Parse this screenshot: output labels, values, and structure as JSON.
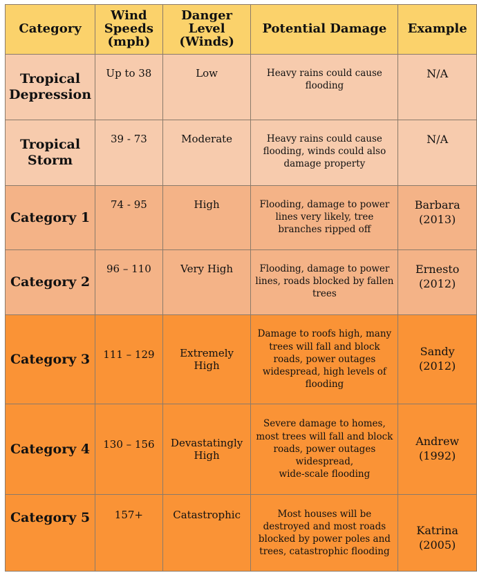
{
  "headers": {
    "category": "Category",
    "wind_speeds": "Wind\nSpeeds\n(mph)",
    "danger_level": "Danger\nLevel\n(Winds)",
    "potential_damage": "Potential Damage",
    "example": "Example"
  },
  "colors": {
    "header": "#fbd26b",
    "light": "#f7cbad",
    "medium": "#f4b387",
    "strong": "#fa9336"
  },
  "rows": [
    {
      "category": "Tropical\nDepression",
      "wind_speeds": "Up to 38",
      "danger_level": "Low",
      "potential_damage": "Heavy rains could cause\nflooding",
      "example": "N/A"
    },
    {
      "category": "Tropical\nStorm",
      "wind_speeds": "39 - 73",
      "danger_level": "Moderate",
      "potential_damage": "Heavy rains could cause\nflooding, winds could also\ndamage property",
      "example": "N/A"
    },
    {
      "category": "Category 1",
      "wind_speeds": "74 - 95",
      "danger_level": "High",
      "potential_damage": "Flooding, damage to power\nlines very likely, tree\nbranches ripped off",
      "example": "Barbara\n(2013)"
    },
    {
      "category": "Category 2",
      "wind_speeds": "96 – 110",
      "danger_level": "Very High",
      "potential_damage": "Flooding, damage to power\nlines, roads blocked by fallen\ntrees",
      "example": "Ernesto\n(2012)"
    },
    {
      "category": "Category 3",
      "wind_speeds": "111 – 129",
      "danger_level": "Extremely\nHigh",
      "potential_damage": "Damage to roofs high, many\ntrees will fall and block\nroads, power outages\nwidespread, high levels of\nflooding",
      "example": "Sandy\n(2012)"
    },
    {
      "category": "Category 4",
      "wind_speeds": "130 – 156",
      "danger_level": "Devastatingly\nHigh",
      "potential_damage": "Severe damage to homes,\nmost trees will fall and block\nroads, power outages\nwidespread,\nwide-scale flooding",
      "example": "Andrew\n(1992)"
    },
    {
      "category": "Category 5",
      "wind_speeds": "157+",
      "danger_level": "Catastrophic",
      "potential_damage": "Most houses will be\ndestroyed and most roads\nblocked by power poles and\ntrees, catastrophic flooding",
      "example": "Katrina\n(2005)"
    }
  ]
}
